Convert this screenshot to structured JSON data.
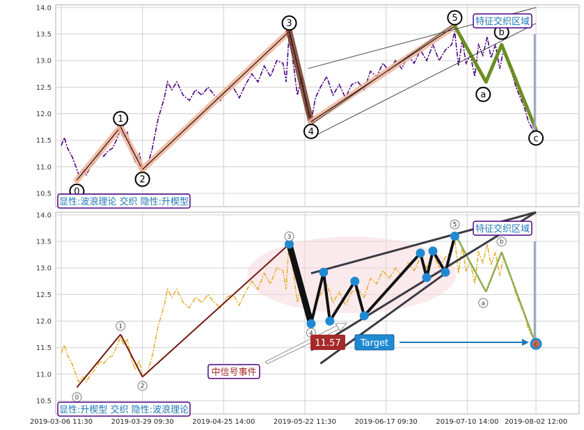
{
  "chart_data": [
    {
      "type": "line",
      "panel": "top",
      "y_ticks": [
        "10.5",
        "11.0",
        "11.5",
        "12.0",
        "12.5",
        "13.0",
        "13.5",
        "14.0"
      ],
      "ylim": [
        10.25,
        14.05
      ],
      "grid": true,
      "series_color": "#4b0082",
      "series_style": "dash-dot",
      "series": [
        {
          "values": [
            [
              1,
              11.4
            ],
            [
              1.5,
              11.55
            ],
            [
              2,
              11.35
            ],
            [
              2.7,
              11.2
            ],
            [
              3.2,
              11.05
            ],
            [
              3.8,
              10.85
            ],
            [
              4.5,
              10.95
            ],
            [
              5,
              10.85
            ],
            [
              5.7,
              11.0
            ],
            [
              6.5,
              11.1
            ],
            [
              7.2,
              11.25
            ],
            [
              7.8,
              11.2
            ],
            [
              8.5,
              11.3
            ],
            [
              9.2,
              11.35
            ],
            [
              9.8,
              11.5
            ],
            [
              10.5,
              11.7
            ],
            [
              11,
              11.55
            ],
            [
              11.6,
              11.65
            ],
            [
              12.2,
              11.3
            ],
            [
              12.8,
              11.1
            ],
            [
              13.5,
              11.25
            ],
            [
              14,
              10.95
            ],
            [
              14.7,
              11.0
            ],
            [
              15.5,
              11.3
            ],
            [
              16.5,
              11.9
            ],
            [
              17.5,
              12.3
            ],
            [
              18,
              12.6
            ],
            [
              18.7,
              12.45
            ],
            [
              19.5,
              12.6
            ],
            [
              20.5,
              12.35
            ],
            [
              21.5,
              12.25
            ],
            [
              22.5,
              12.45
            ],
            [
              23.5,
              12.35
            ],
            [
              24.5,
              12.5
            ],
            [
              25.5,
              12.35
            ],
            [
              26.5,
              12.25
            ],
            [
              27.5,
              12.45
            ],
            [
              28.5,
              12.5
            ],
            [
              29.5,
              12.3
            ],
            [
              30.5,
              12.55
            ],
            [
              31.5,
              12.75
            ],
            [
              32.5,
              12.6
            ],
            [
              33.5,
              12.9
            ],
            [
              34.5,
              12.7
            ],
            [
              35.5,
              13.0
            ],
            [
              36.5,
              12.95
            ],
            [
              37,
              12.6
            ],
            [
              37.5,
              13.55
            ],
            [
              38.2,
              12.9
            ],
            [
              38.8,
              12.35
            ],
            [
              39.5,
              12.7
            ],
            [
              40.2,
              12.1
            ],
            [
              41,
              11.85
            ],
            [
              41.7,
              12.3
            ],
            [
              42.5,
              12.5
            ],
            [
              43.5,
              12.7
            ],
            [
              44.5,
              12.35
            ],
            [
              45.5,
              12.55
            ],
            [
              46.5,
              12.3
            ],
            [
              47.5,
              12.55
            ],
            [
              48.5,
              12.6
            ],
            [
              49.5,
              12.45
            ],
            [
              50.5,
              12.8
            ],
            [
              51.5,
              12.7
            ],
            [
              52.5,
              12.95
            ],
            [
              53.5,
              12.8
            ],
            [
              54.5,
              13.0
            ],
            [
              55.5,
              12.85
            ],
            [
              56.5,
              13.1
            ],
            [
              57.5,
              12.95
            ],
            [
              58.5,
              13.2
            ],
            [
              59.5,
              13.0
            ],
            [
              60.5,
              13.3
            ],
            [
              61.5,
              13.0
            ],
            [
              62.5,
              13.2
            ],
            [
              63.5,
              13.3
            ],
            [
              64,
              13.55
            ],
            [
              64.6,
              12.9
            ],
            [
              65.2,
              13.4
            ],
            [
              65.8,
              12.95
            ],
            [
              66.5,
              13.1
            ],
            [
              67.2,
              12.7
            ],
            [
              67.8,
              13.3
            ],
            [
              68.5,
              13.1
            ],
            [
              69.2,
              13.45
            ],
            [
              69.8,
              13.05
            ],
            [
              70.5,
              13.3
            ],
            [
              71.2,
              12.85
            ],
            [
              71.8,
              13.2
            ],
            [
              72.5,
              12.95
            ],
            [
              73.2,
              12.75
            ],
            [
              73.8,
              12.5
            ],
            [
              74.5,
              12.3
            ],
            [
              75.2,
              12.1
            ],
            [
              75.8,
              11.85
            ],
            [
              76.5,
              11.7
            ],
            [
              77,
              11.55
            ]
          ]
        }
      ],
      "elliott_waves": [
        {
          "label": "0",
          "x": 3.5,
          "y": 10.75
        },
        {
          "label": "1",
          "x": 10.5,
          "y": 11.75
        },
        {
          "label": "2",
          "x": 14,
          "y": 10.95
        },
        {
          "label": "3",
          "x": 37.5,
          "y": 13.55
        },
        {
          "label": "4",
          "x": 41,
          "y": 11.85
        },
        {
          "label": "5",
          "x": 64,
          "y": 13.65
        }
      ],
      "correction_waves": [
        {
          "label": "a",
          "x": 69,
          "y": 12.6
        },
        {
          "label": "b",
          "x": 71.5,
          "y": 13.3
        },
        {
          "label": "c",
          "x": 77,
          "y": 11.7
        }
      ],
      "annotations": {
        "region_label": "特征交织区域",
        "info_box": "显性:波浪理论 交织 隐性:升楔型"
      },
      "colors": {
        "impulse_highlight": "#f4b39a",
        "wave4_highlight": "#7a3b2a",
        "correction": "#6b8e23",
        "box_text": "#1f77b4",
        "box_border": "#4b0082"
      }
    },
    {
      "type": "line",
      "panel": "bottom",
      "y_ticks": [
        "10.5",
        "11.0",
        "11.5",
        "12.0",
        "12.5",
        "13.0",
        "13.5",
        "14.0"
      ],
      "ylim": [
        10.25,
        14.05
      ],
      "grid": true,
      "x_tick_labels": [
        "2019-03-06 11:30",
        "2019-03-29 09:30",
        "2019-04-25 14:00",
        "2019-05-22 11:30",
        "2019-06-17 09:30",
        "2019-07-10 14:00",
        "2019-08-02 12:00"
      ],
      "series_color": "#e6b030",
      "series_style": "dash-dot",
      "elliott_waves": [
        {
          "label": "0",
          "x": 3.5,
          "y": 10.75
        },
        {
          "label": "1",
          "x": 10.5,
          "y": 11.75
        },
        {
          "label": "2",
          "x": 14,
          "y": 10.95
        },
        {
          "label": "3",
          "x": 37.5,
          "y": 13.45
        },
        {
          "label": "4",
          "x": 41,
          "y": 11.95
        },
        {
          "label": "5",
          "x": 64,
          "y": 13.65
        }
      ],
      "correction_waves": [
        {
          "label": "a",
          "x": 69,
          "y": 12.55
        },
        {
          "label": "b",
          "x": 71.5,
          "y": 13.3
        },
        {
          "label": "c",
          "x": 77,
          "y": 11.55
        }
      ],
      "wedge_points": [
        {
          "x": 37.5,
          "y": 13.45
        },
        {
          "x": 41,
          "y": 11.95
        },
        {
          "x": 43,
          "y": 12.92
        },
        {
          "x": 44,
          "y": 12.0
        },
        {
          "x": 48,
          "y": 12.75
        },
        {
          "x": 49.5,
          "y": 12.1
        },
        {
          "x": 58.5,
          "y": 13.28
        },
        {
          "x": 59.5,
          "y": 12.82
        },
        {
          "x": 60.5,
          "y": 13.32
        },
        {
          "x": 62.5,
          "y": 12.92
        },
        {
          "x": 64,
          "y": 13.6
        }
      ],
      "signal_event_label": "中信号事件",
      "target_value": "11.57",
      "target_label": "Target",
      "annotations": {
        "region_label": "特征交织区域",
        "info_box": "显性:升楔型 交织 隐性:波浪理论"
      },
      "colors": {
        "wedge_line": "#111111",
        "wedge_point": "#1f8ad2",
        "target_value_bg": "#a52a2a",
        "target_label_bg": "#1f8ad2",
        "correction": "#8fad4f",
        "ellipse": "#f8d8dc",
        "box_text": "#1f77b4",
        "box_border": "#4b0082",
        "signal_text": "#a52a2a"
      }
    }
  ]
}
